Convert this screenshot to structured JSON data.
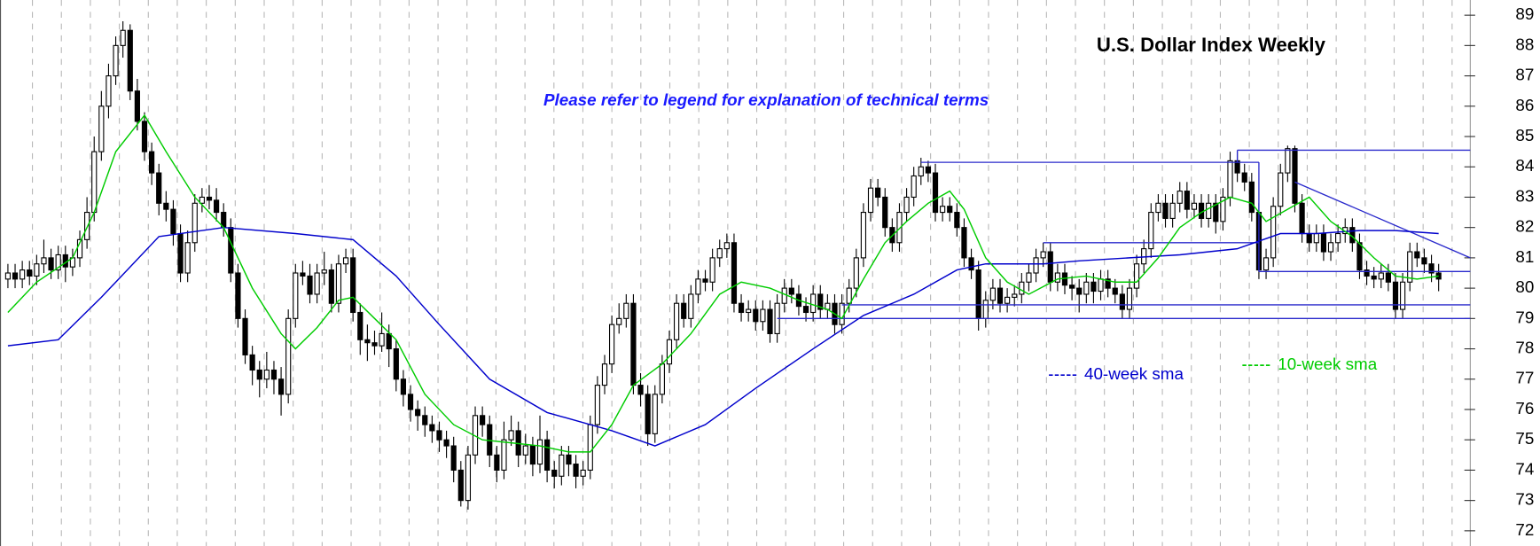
{
  "chart_data": {
    "type": "candlestick",
    "title": "U.S. Dollar Index Weekly",
    "subtitle": "Please refer to legend for explanation of technical terms",
    "up_color": "#ffffff",
    "down_color": "#000000",
    "ohlc": [
      [
        80.3,
        80.8,
        80.0,
        80.5
      ],
      [
        80.5,
        80.8,
        80.0,
        80.3
      ],
      [
        80.3,
        80.9,
        80.0,
        80.6
      ],
      [
        80.6,
        80.9,
        80.1,
        80.4
      ],
      [
        80.4,
        81.1,
        80.1,
        80.8
      ],
      [
        80.8,
        81.6,
        80.5,
        81
      ],
      [
        81,
        81.3,
        80.3,
        80.6
      ],
      [
        80.6,
        81.4,
        80.3,
        81.1
      ],
      [
        81.1,
        81.4,
        80.2,
        80.7
      ],
      [
        80.7,
        81.3,
        80.4,
        81
      ],
      [
        81,
        81.9,
        80.7,
        81.6
      ],
      [
        81.6,
        83,
        81.3,
        82.5
      ],
      [
        82.5,
        85,
        82.2,
        84.5
      ],
      [
        84.5,
        86.5,
        84.2,
        86
      ],
      [
        86,
        87.4,
        85.6,
        87
      ],
      [
        87,
        88.3,
        86.7,
        88
      ],
      [
        88,
        88.8,
        87.6,
        88.5
      ],
      [
        88.5,
        88.7,
        86.2,
        86.5
      ],
      [
        86.5,
        86.9,
        85.2,
        85.5
      ],
      [
        85.5,
        85.8,
        84.2,
        84.5
      ],
      [
        84.5,
        84.8,
        83.4,
        83.8
      ],
      [
        83.8,
        84.1,
        82.4,
        82.8
      ],
      [
        82.8,
        83.2,
        82.2,
        82.6
      ],
      [
        82.6,
        82.9,
        81.4,
        81.8
      ],
      [
        81.8,
        82.1,
        80.2,
        80.5
      ],
      [
        80.5,
        81.9,
        80.2,
        81.5
      ],
      [
        81.5,
        83.1,
        81.2,
        82.8
      ],
      [
        82.8,
        83.3,
        82.5,
        83
      ],
      [
        83,
        83.4,
        82.6,
        82.9
      ],
      [
        82.9,
        83.3,
        82.2,
        82.5
      ],
      [
        82.5,
        82.8,
        81.7,
        82
      ],
      [
        82,
        82.3,
        80.2,
        80.5
      ],
      [
        80.5,
        80.8,
        78.7,
        79
      ],
      [
        79,
        79.3,
        77.5,
        77.8
      ],
      [
        77.8,
        78.1,
        76.8,
        77.3
      ],
      [
        77.3,
        77.6,
        76.4,
        77
      ],
      [
        77,
        77.9,
        76.7,
        77.3
      ],
      [
        77.3,
        77.6,
        76.5,
        77
      ],
      [
        77,
        77.4,
        75.8,
        76.5
      ],
      [
        76.5,
        79.3,
        76.2,
        79
      ],
      [
        79,
        80.8,
        78.7,
        80.5
      ],
      [
        80.5,
        80.9,
        80.1,
        80.4
      ],
      [
        80.4,
        80.8,
        79.5,
        79.8
      ],
      [
        79.8,
        80.8,
        79.5,
        80.5
      ],
      [
        80.5,
        81.2,
        80.1,
        80.6
      ],
      [
        80.6,
        80.8,
        79.2,
        79.5
      ],
      [
        79.5,
        81.1,
        79.2,
        80.8
      ],
      [
        80.8,
        81.3,
        80.5,
        81
      ],
      [
        81,
        81.3,
        78.9,
        79.2
      ],
      [
        79.2,
        79.5,
        77.8,
        78.3
      ],
      [
        78.3,
        78.8,
        77.6,
        78.2
      ],
      [
        78.2,
        78.6,
        77.8,
        78.1
      ],
      [
        78.1,
        79.2,
        77.9,
        78.5
      ],
      [
        78.5,
        78.8,
        77.4,
        78
      ],
      [
        78,
        78.3,
        76.6,
        77
      ],
      [
        77,
        77.3,
        76.1,
        76.5
      ],
      [
        76.5,
        76.8,
        75.6,
        76
      ],
      [
        76,
        76.3,
        75.3,
        75.8
      ],
      [
        75.8,
        76.1,
        75.1,
        75.5
      ],
      [
        75.5,
        75.8,
        74.9,
        75.3
      ],
      [
        75.3,
        75.6,
        74.6,
        75
      ],
      [
        75,
        75.3,
        74.4,
        74.8
      ],
      [
        74.8,
        75.1,
        73.6,
        74
      ],
      [
        74,
        74.3,
        72.8,
        73
      ],
      [
        73,
        74.8,
        72.7,
        74.5
      ],
      [
        74.5,
        76.1,
        74.2,
        75.8
      ],
      [
        75.8,
        76.1,
        75.1,
        75.5
      ],
      [
        75.5,
        75.8,
        74.1,
        74.5
      ],
      [
        74.5,
        74.8,
        73.6,
        74
      ],
      [
        74,
        75.6,
        73.7,
        75
      ],
      [
        75,
        75.8,
        74.8,
        75.3
      ],
      [
        75.3,
        75.6,
        74.1,
        74.5
      ],
      [
        74.5,
        75.2,
        74.2,
        74.8
      ],
      [
        74.8,
        75.1,
        73.8,
        74.2
      ],
      [
        74.2,
        75.8,
        73.9,
        75
      ],
      [
        75,
        75.3,
        73.6,
        74
      ],
      [
        74,
        74.3,
        73.4,
        73.8
      ],
      [
        73.8,
        74.8,
        73.5,
        74.5
      ],
      [
        74.5,
        74.8,
        73.8,
        74.2
      ],
      [
        74.2,
        74.5,
        73.4,
        73.8
      ],
      [
        73.8,
        74.3,
        73.5,
        74
      ],
      [
        74,
        75.8,
        73.7,
        75.5
      ],
      [
        75.5,
        77.1,
        75.2,
        76.8
      ],
      [
        76.8,
        77.8,
        76.5,
        77.5
      ],
      [
        77.5,
        79.1,
        77.2,
        78.8
      ],
      [
        78.8,
        79.5,
        78.5,
        79
      ],
      [
        79,
        79.8,
        78.7,
        79.5
      ],
      [
        79.5,
        79.8,
        76.5,
        76.8
      ],
      [
        76.8,
        77.2,
        76.1,
        76.5
      ],
      [
        76.5,
        76.8,
        74.8,
        75.2
      ],
      [
        75.2,
        76.8,
        74.9,
        76.5
      ],
      [
        76.5,
        77.8,
        76.2,
        77.5
      ],
      [
        77.5,
        78.6,
        77.2,
        78.3
      ],
      [
        78.3,
        79.8,
        78,
        79.5
      ],
      [
        79.5,
        79.8,
        78.7,
        79
      ],
      [
        79,
        80.1,
        78.7,
        79.8
      ],
      [
        79.8,
        80.6,
        79.5,
        80.3
      ],
      [
        80.3,
        80.6,
        79.9,
        80.2
      ],
      [
        80.2,
        81.3,
        79.9,
        81
      ],
      [
        81,
        81.6,
        80.7,
        81.3
      ],
      [
        81.3,
        81.8,
        81,
        81.5
      ],
      [
        81.5,
        81.8,
        79.2,
        79.5
      ],
      [
        79.5,
        79.8,
        78.9,
        79.2
      ],
      [
        79.2,
        79.6,
        78.9,
        79.3
      ],
      [
        79.3,
        79.6,
        78.6,
        78.9
      ],
      [
        78.9,
        79.6,
        78.6,
        79.3
      ],
      [
        79.3,
        79.6,
        78.2,
        78.5
      ],
      [
        78.5,
        79.8,
        78.2,
        79.5
      ],
      [
        79.5,
        80.3,
        79.2,
        80
      ],
      [
        80,
        80.3,
        79.5,
        79.8
      ],
      [
        79.8,
        80.1,
        79.1,
        79.4
      ],
      [
        79.4,
        79.7,
        78.9,
        79.2
      ],
      [
        79.2,
        80.1,
        78.9,
        79.8
      ],
      [
        79.8,
        80.1,
        79,
        79.3
      ],
      [
        79.3,
        79.8,
        79,
        79.5
      ],
      [
        79.5,
        79.8,
        78.5,
        78.8
      ],
      [
        78.8,
        79.8,
        78.5,
        79.5
      ],
      [
        79.5,
        80.3,
        79.2,
        80
      ],
      [
        80,
        81.3,
        79.7,
        81
      ],
      [
        81,
        82.8,
        80.7,
        82.5
      ],
      [
        82.5,
        83.6,
        82.2,
        83.3
      ],
      [
        83.3,
        83.6,
        82.7,
        83
      ],
      [
        83,
        83.3,
        81.7,
        82
      ],
      [
        82,
        82.3,
        81.2,
        81.5
      ],
      [
        81.5,
        82.8,
        81.2,
        82.5
      ],
      [
        82.5,
        83.3,
        82.2,
        83
      ],
      [
        83,
        84,
        82.7,
        83.7
      ],
      [
        83.7,
        84.3,
        83.4,
        84
      ],
      [
        84,
        84.2,
        83.5,
        83.8
      ],
      [
        83.8,
        84.1,
        82.2,
        82.5
      ],
      [
        82.5,
        83,
        82.2,
        82.7
      ],
      [
        82.7,
        83,
        82.2,
        82.5
      ],
      [
        82.5,
        82.8,
        81.7,
        82
      ],
      [
        82,
        82.3,
        80.7,
        81
      ],
      [
        81,
        81.3,
        80.3,
        80.6
      ],
      [
        80.6,
        80.9,
        78.6,
        79
      ],
      [
        79,
        79.9,
        78.7,
        79.6
      ],
      [
        79.6,
        80.3,
        79.3,
        80
      ],
      [
        80,
        80.3,
        79.2,
        79.5
      ],
      [
        79.5,
        80,
        79.2,
        79.7
      ],
      [
        79.7,
        80.1,
        79.4,
        79.8
      ],
      [
        79.8,
        80.5,
        79.5,
        80.2
      ],
      [
        80.2,
        80.8,
        79.9,
        80.5
      ],
      [
        80.5,
        81.3,
        80.2,
        81
      ],
      [
        81,
        81.5,
        80.7,
        81.2
      ],
      [
        81.2,
        81.5,
        79.9,
        80.2
      ],
      [
        80.2,
        80.8,
        79.9,
        80.5
      ],
      [
        80.5,
        80.8,
        79.8,
        80.1
      ],
      [
        80.1,
        80.4,
        79.6,
        80
      ],
      [
        80,
        80.3,
        79.2,
        79.8
      ],
      [
        79.8,
        80.5,
        79.5,
        80.2
      ],
      [
        80.2,
        80.5,
        79.5,
        79.9
      ],
      [
        79.9,
        80.6,
        79.6,
        80.3
      ],
      [
        80.3,
        80.6,
        79.7,
        80
      ],
      [
        80,
        80.3,
        79.5,
        79.8
      ],
      [
        79.8,
        80.1,
        79,
        79.3
      ],
      [
        79.3,
        80.3,
        79,
        80
      ],
      [
        80,
        81.1,
        79.7,
        80.8
      ],
      [
        80.8,
        81.6,
        80.5,
        81.3
      ],
      [
        81.3,
        82.8,
        81,
        82.5
      ],
      [
        82.5,
        83.1,
        82.2,
        82.8
      ],
      [
        82.8,
        83.1,
        82,
        82.3
      ],
      [
        82.3,
        83.1,
        82,
        82.8
      ],
      [
        82.8,
        83.5,
        82.5,
        83.2
      ],
      [
        83.2,
        83.5,
        82.3,
        82.6
      ],
      [
        82.6,
        83.1,
        82.3,
        82.8
      ],
      [
        82.8,
        83.1,
        82,
        82.3
      ],
      [
        82.3,
        83.1,
        82,
        82.8
      ],
      [
        82.8,
        83.1,
        81.8,
        82.2
      ],
      [
        82.2,
        83.3,
        81.9,
        83
      ],
      [
        83,
        84.5,
        82.7,
        84.2
      ],
      [
        84.2,
        84.5,
        83.5,
        83.8
      ],
      [
        83.8,
        84.1,
        83.2,
        83.5
      ],
      [
        83.5,
        83.8,
        82.2,
        82.5
      ],
      [
        82.5,
        82.8,
        80.3,
        80.6
      ],
      [
        80.6,
        81.3,
        80.3,
        81
      ],
      [
        81,
        83,
        80.7,
        82.7
      ],
      [
        82.7,
        84.1,
        82.4,
        83.8
      ],
      [
        83.8,
        84.7,
        83.5,
        84.6
      ],
      [
        84.6,
        84.7,
        82.5,
        82.8
      ],
      [
        82.8,
        83.1,
        81.5,
        81.8
      ],
      [
        81.8,
        82.1,
        81.2,
        81.5
      ],
      [
        81.5,
        82.1,
        81.2,
        81.8
      ],
      [
        81.8,
        82.1,
        80.9,
        81.2
      ],
      [
        81.2,
        81.8,
        80.9,
        81.5
      ],
      [
        81.5,
        82.1,
        81.2,
        81.8
      ],
      [
        81.8,
        82.3,
        81.5,
        82
      ],
      [
        82,
        82.3,
        81.2,
        81.5
      ],
      [
        81.5,
        81.8,
        80.3,
        80.6
      ],
      [
        80.6,
        80.9,
        80.1,
        80.4
      ],
      [
        80.4,
        80.7,
        80,
        80.3
      ],
      [
        80.3,
        80.8,
        80,
        80.5
      ],
      [
        80.5,
        80.8,
        79.9,
        80.2
      ],
      [
        80.2,
        80.5,
        79,
        79.3
      ],
      [
        79.3,
        80.5,
        79,
        80.2
      ],
      [
        80.2,
        81.5,
        79.9,
        81.2
      ],
      [
        81.2,
        81.5,
        80.7,
        81
      ],
      [
        81,
        81.3,
        80.5,
        80.8
      ],
      [
        80.8,
        81.1,
        80.2,
        80.5
      ],
      [
        80.5,
        80.8,
        79.9,
        80.3
      ]
    ],
    "series": [
      {
        "name": "40-week sma",
        "color": "#0000cc",
        "x": [
          0,
          7,
          13,
          21,
          30,
          40,
          48,
          54,
          60,
          67,
          75,
          84,
          90,
          97,
          104,
          112,
          119,
          126,
          132,
          136,
          144,
          149,
          156,
          163,
          171,
          177,
          182,
          188,
          193,
          199
        ],
        "values": [
          78.1,
          78.3,
          79.7,
          81.7,
          82,
          81.8,
          81.6,
          80.4,
          78.8,
          77,
          75.9,
          75.3,
          74.8,
          75.5,
          76.7,
          78,
          79.1,
          79.8,
          80.6,
          80.8,
          80.8,
          80.9,
          81,
          81.1,
          81.3,
          81.8,
          81.8,
          81.9,
          81.9,
          81.8
        ]
      },
      {
        "name": "10-week sma",
        "color": "#00cc00",
        "x": [
          0,
          4,
          9,
          12,
          15,
          19,
          22,
          26,
          30,
          34,
          38,
          40,
          43,
          46,
          48,
          51,
          54,
          58,
          62,
          66,
          70,
          74,
          78,
          81,
          84,
          87,
          91,
          95,
          99,
          102,
          106,
          110,
          114,
          116,
          119,
          122,
          125,
          128,
          131,
          133,
          136,
          139,
          142,
          146,
          150,
          154,
          157,
          160,
          163,
          166,
          170,
          173,
          175,
          178,
          181,
          184,
          187,
          190,
          193,
          196,
          199
        ],
        "values": [
          79.2,
          80.2,
          81,
          82.5,
          84.5,
          85.7,
          84.5,
          83,
          82,
          80,
          78.5,
          78,
          78.7,
          79.6,
          79.7,
          79,
          78.3,
          76.5,
          75.5,
          75,
          74.9,
          74.8,
          74.6,
          74.6,
          75.5,
          76.8,
          77.5,
          78.5,
          79.8,
          80.2,
          80,
          79.6,
          79.3,
          79,
          80.3,
          81.5,
          82.2,
          82.8,
          83.2,
          82.6,
          81,
          80.2,
          79.8,
          80.3,
          80.4,
          80.2,
          80.2,
          81,
          82,
          82.5,
          83,
          82.8,
          82.2,
          82.6,
          83,
          82.2,
          81.7,
          81,
          80.4,
          80.3,
          80.4
        ]
      }
    ],
    "trendline_color": "#2a2acc",
    "trendlines": [
      {
        "x": [
          127,
          174
        ],
        "values": [
          84.15,
          84.15
        ]
      },
      {
        "x": [
          171,
          203.4
        ],
        "values": [
          84.55,
          84.55
        ]
      },
      {
        "x": [
          171,
          171
        ],
        "values": [
          84.55,
          84.15
        ]
      },
      {
        "x": [
          144,
          174
        ],
        "values": [
          81.5,
          81.5
        ]
      },
      {
        "x": [
          174,
          174
        ],
        "values": [
          84.15,
          80.55
        ]
      },
      {
        "x": [
          174,
          203.4
        ],
        "values": [
          80.55,
          80.55
        ]
      },
      {
        "x": [
          116,
          203.4
        ],
        "values": [
          79.45,
          79.45
        ]
      },
      {
        "x": [
          107,
          203.4
        ],
        "values": [
          79.0,
          79.0
        ]
      },
      {
        "x": [
          179,
          203.4
        ],
        "values": [
          83.5,
          81.0
        ]
      }
    ],
    "xlim": [
      -1.1,
      203.4
    ],
    "ylim": [
      71.5,
      89.5
    ],
    "yticks": [
      72,
      73,
      74,
      75,
      76,
      77,
      78,
      79,
      80,
      81,
      82,
      83,
      84,
      85,
      86,
      87,
      88,
      89
    ]
  }
}
